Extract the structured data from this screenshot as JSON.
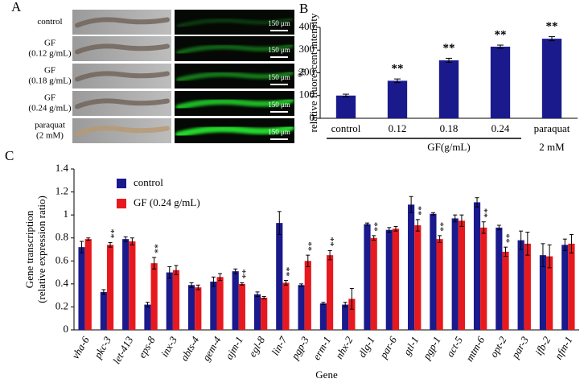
{
  "panel_a": {
    "panel_label": "A",
    "rows": [
      {
        "label": [
          "control"
        ],
        "scale": "150 μm"
      },
      {
        "label": [
          "GF",
          "(0.12 g/mL)"
        ],
        "scale": "150 μm"
      },
      {
        "label": [
          "GF",
          "(0.18 g/mL)"
        ],
        "scale": "150 μm"
      },
      {
        "label": [
          "GF",
          "(0.24 g/mL)"
        ],
        "scale": "150 μm"
      },
      {
        "label": [
          "paraquat",
          "(2 mM)"
        ],
        "scale": "150 μm"
      }
    ]
  },
  "chart_data": [
    {
      "type": "bar",
      "panel_label": "B",
      "ylabel": [
        "%",
        "relative fluorescent intensity"
      ],
      "categories": [
        [
          "control"
        ],
        [
          "0.12"
        ],
        [
          "0.18"
        ],
        [
          "0.24"
        ],
        [
          "paraquat",
          "2 mM"
        ]
      ],
      "group_label": "GF(g/mL)",
      "values": [
        100,
        165,
        255,
        315,
        350
      ],
      "errors": [
        6,
        8,
        9,
        7,
        9
      ],
      "annotations": [
        null,
        "**",
        "**",
        "**",
        "**"
      ],
      "color": "#1a1a8c",
      "ylim": [
        0,
        400
      ],
      "yticks": [
        0,
        100,
        200,
        300,
        400
      ]
    },
    {
      "type": "grouped_bar",
      "panel_label": "C",
      "ylabel": [
        "Gene transcription",
        "(relative expression ratio)"
      ],
      "xlabel": "Gene",
      "categories": [
        "vha-6",
        "pkc-3",
        "let-413",
        "eps-8",
        "inx-3",
        "abts-4",
        "gem-4",
        "ajm-1",
        "egl-8",
        "lin-7",
        "pgp-3",
        "erm-1",
        "nhx-2",
        "dlg-1",
        "par-6",
        "gtl-1",
        "pgp-1",
        "act-5",
        "mtm-6",
        "opt-2",
        "par-3",
        "ifb-2",
        "nfm-1"
      ],
      "series": [
        {
          "name": "control",
          "color": "#1a1a8c",
          "values": [
            0.72,
            0.33,
            0.79,
            0.22,
            0.5,
            0.39,
            0.42,
            0.51,
            0.31,
            0.93,
            0.39,
            0.23,
            0.22,
            0.92,
            0.87,
            1.09,
            1.01,
            0.97,
            1.11,
            0.89,
            0.78,
            0.65,
            0.74
          ],
          "errors": [
            0.05,
            0.02,
            0.02,
            0.02,
            0.05,
            0.02,
            0.04,
            0.02,
            0.02,
            0.1,
            0.01,
            0.01,
            0.02,
            0.01,
            0.02,
            0.07,
            0.01,
            0.03,
            0.04,
            0.02,
            0.08,
            0.1,
            0.05
          ]
        },
        {
          "name": "GF (0.24 g/mL)",
          "color": "#e8191e",
          "values": [
            0.79,
            0.74,
            0.77,
            0.58,
            0.52,
            0.37,
            0.46,
            0.4,
            0.28,
            0.41,
            0.6,
            0.65,
            0.27,
            0.8,
            0.88,
            0.91,
            0.79,
            0.95,
            0.89,
            0.68,
            0.75,
            0.64,
            0.75
          ],
          "errors": [
            0.01,
            0.02,
            0.03,
            0.05,
            0.04,
            0.02,
            0.03,
            0.01,
            0.01,
            0.02,
            0.05,
            0.04,
            0.09,
            0.02,
            0.02,
            0.05,
            0.03,
            0.05,
            0.05,
            0.04,
            0.1,
            0.1,
            0.08
          ],
          "annotations": [
            null,
            "**",
            null,
            "**",
            null,
            null,
            null,
            "**",
            null,
            "**",
            "**",
            "**",
            null,
            "**",
            null,
            "**",
            "**",
            null,
            "**",
            "**",
            null,
            null,
            null
          ]
        }
      ],
      "ylim": [
        0,
        1.4
      ],
      "yticks": [
        0,
        0.2,
        0.4,
        0.6,
        0.8,
        1,
        1.2,
        1.4
      ]
    }
  ]
}
